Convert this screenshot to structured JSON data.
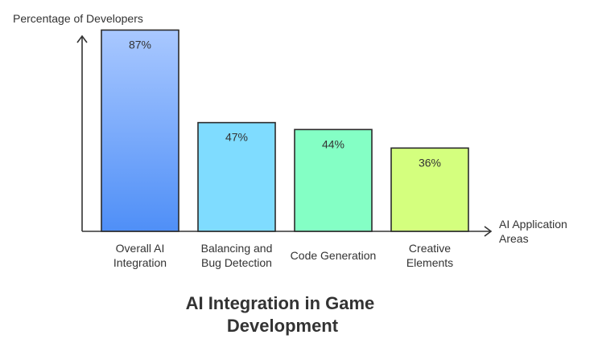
{
  "chart_data": {
    "type": "bar",
    "title": "AI Integration in Game Development",
    "ylabel": "Percentage of Developers",
    "xlabel": "AI Application Areas",
    "categories": [
      "Overall AI Integration",
      "Balancing and Bug Detection",
      "Code Generation",
      "Creative Elements"
    ],
    "values": [
      87,
      47,
      44,
      36
    ],
    "value_labels": [
      "87%",
      "47%",
      "44%",
      "36%"
    ],
    "ylim": [
      0,
      100
    ],
    "grid": false,
    "bar_colors": [
      {
        "top": "#a9c8ff",
        "bottom": "#4f8ff7"
      },
      {
        "top": "#7fdcff",
        "bottom": "#7fdcff"
      },
      {
        "top": "#84ffc5",
        "bottom": "#84ffc5"
      },
      {
        "top": "#d4ff7e",
        "bottom": "#d4ff7e"
      }
    ]
  }
}
